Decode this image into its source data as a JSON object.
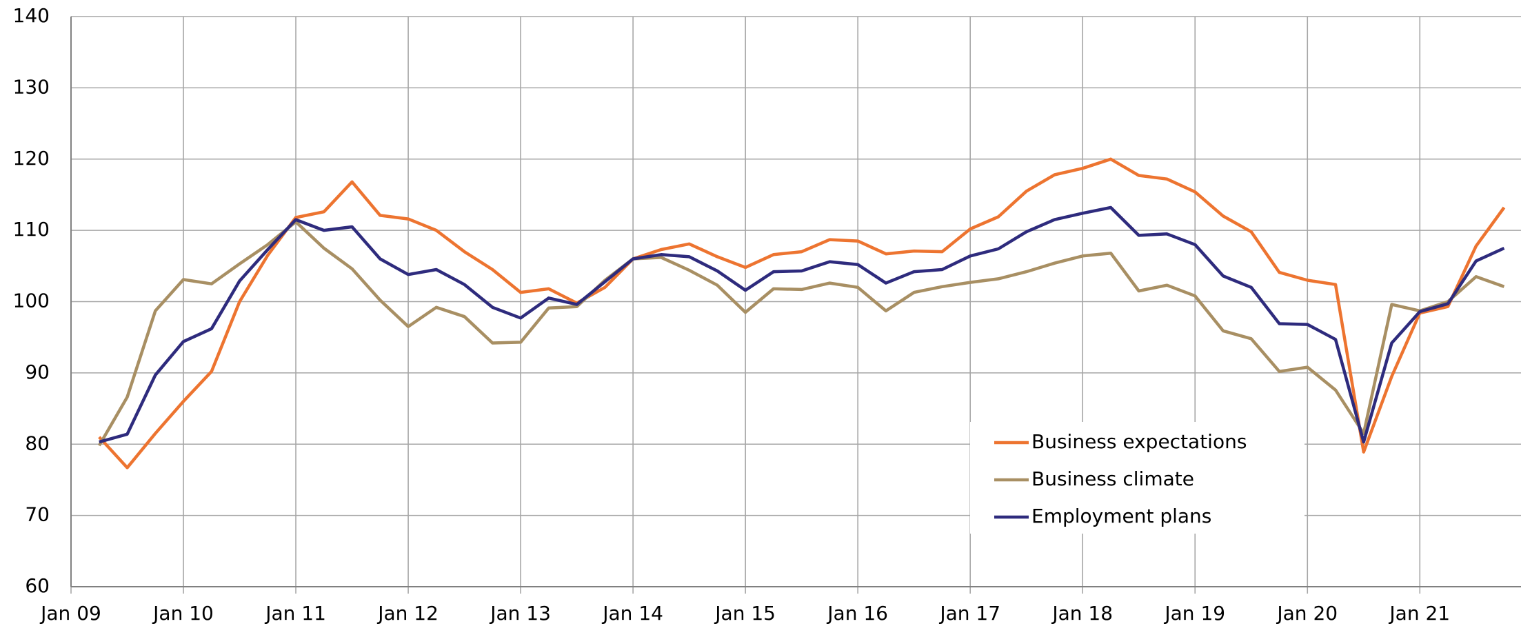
{
  "chart_data": {
    "type": "line",
    "x": [
      2009.25,
      2009.5,
      2009.75,
      2010,
      2010.25,
      2010.5,
      2010.75,
      2011,
      2011.25,
      2011.5,
      2011.75,
      2012,
      2012.25,
      2012.5,
      2012.75,
      2013,
      2013.25,
      2013.5,
      2013.75,
      2014,
      2014.25,
      2014.5,
      2014.75,
      2015,
      2015.25,
      2015.5,
      2015.75,
      2016,
      2016.25,
      2016.5,
      2016.75,
      2017,
      2017.25,
      2017.5,
      2017.75,
      2018,
      2018.25,
      2018.5,
      2018.75,
      2019,
      2019.25,
      2019.5,
      2019.75,
      2020,
      2020.25,
      2020.5,
      2020.75,
      2021,
      2021.25,
      2021.5,
      2021.75
    ],
    "series": [
      {
        "name": "Business expectations",
        "color": "#ed7430",
        "values": [
          81,
          76.7,
          81.5,
          86,
          90.2,
          100,
          106.5,
          111.8,
          112.6,
          116.8,
          112.1,
          111.6,
          110,
          107,
          104.5,
          101.3,
          101.8,
          99.8,
          102,
          106,
          107.3,
          108.1,
          106.3,
          104.8,
          106.6,
          107,
          108.7,
          108.5,
          106.7,
          107.1,
          107,
          110.2,
          111.9,
          115.5,
          117.8,
          118.7,
          120,
          117.7,
          117.2,
          115.4,
          112,
          109.8,
          104.1,
          103,
          102.4,
          78.9,
          89.5,
          98.4,
          99.3,
          107.8,
          113.2
        ]
      },
      {
        "name": "Business climate",
        "color": "#a88f63",
        "values": [
          79.8,
          86.6,
          98.7,
          103.1,
          102.5,
          105.3,
          108,
          111.2,
          107.5,
          104.6,
          100.2,
          96.5,
          99.2,
          97.9,
          94.2,
          94.3,
          99.1,
          99.3,
          103,
          106,
          106.2,
          104.4,
          102.3,
          98.5,
          101.8,
          101.7,
          102.6,
          102,
          98.7,
          101.3,
          102.1,
          102.7,
          103.2,
          104.2,
          105.4,
          106.4,
          106.8,
          101.5,
          102.3,
          100.8,
          95.9,
          94.8,
          90.2,
          90.8,
          87.6,
          81.5,
          99.6,
          98.7,
          100,
          103.5,
          102.1
        ]
      },
      {
        "name": "Employment plans",
        "color": "#2e2b7d",
        "values": [
          80.3,
          81.4,
          89.7,
          94.4,
          96.2,
          102.9,
          107.3,
          111.5,
          110,
          110.5,
          106,
          103.8,
          104.5,
          102.4,
          99.2,
          97.7,
          100.5,
          99.6,
          102.8,
          106,
          106.6,
          106.3,
          104.3,
          101.6,
          104.2,
          104.3,
          105.6,
          105.2,
          102.6,
          104.2,
          104.5,
          106.4,
          107.4,
          109.8,
          111.5,
          112.4,
          113.2,
          109.3,
          109.5,
          108,
          103.6,
          102,
          96.9,
          96.8,
          94.7,
          80.3,
          94.2,
          98.6,
          99.7,
          105.7,
          107.5
        ]
      }
    ],
    "xlim": [
      2009,
      2021.9
    ],
    "xticks": [
      {
        "value": 2009,
        "label": "Jan 09"
      },
      {
        "value": 2010,
        "label": "Jan 10"
      },
      {
        "value": 2011,
        "label": "Jan 11"
      },
      {
        "value": 2012,
        "label": "Jan 12"
      },
      {
        "value": 2013,
        "label": "Jan 13"
      },
      {
        "value": 2014,
        "label": "Jan 14"
      },
      {
        "value": 2015,
        "label": "Jan 15"
      },
      {
        "value": 2016,
        "label": "Jan 16"
      },
      {
        "value": 2017,
        "label": "Jan 17"
      },
      {
        "value": 2018,
        "label": "Jan 18"
      },
      {
        "value": 2019,
        "label": "Jan 19"
      },
      {
        "value": 2020,
        "label": "Jan 20"
      },
      {
        "value": 2021,
        "label": "Jan 21"
      }
    ],
    "ylim": [
      60,
      140
    ],
    "yticks": [
      60,
      70,
      80,
      90,
      100,
      110,
      120,
      130,
      140
    ],
    "grid": true
  }
}
